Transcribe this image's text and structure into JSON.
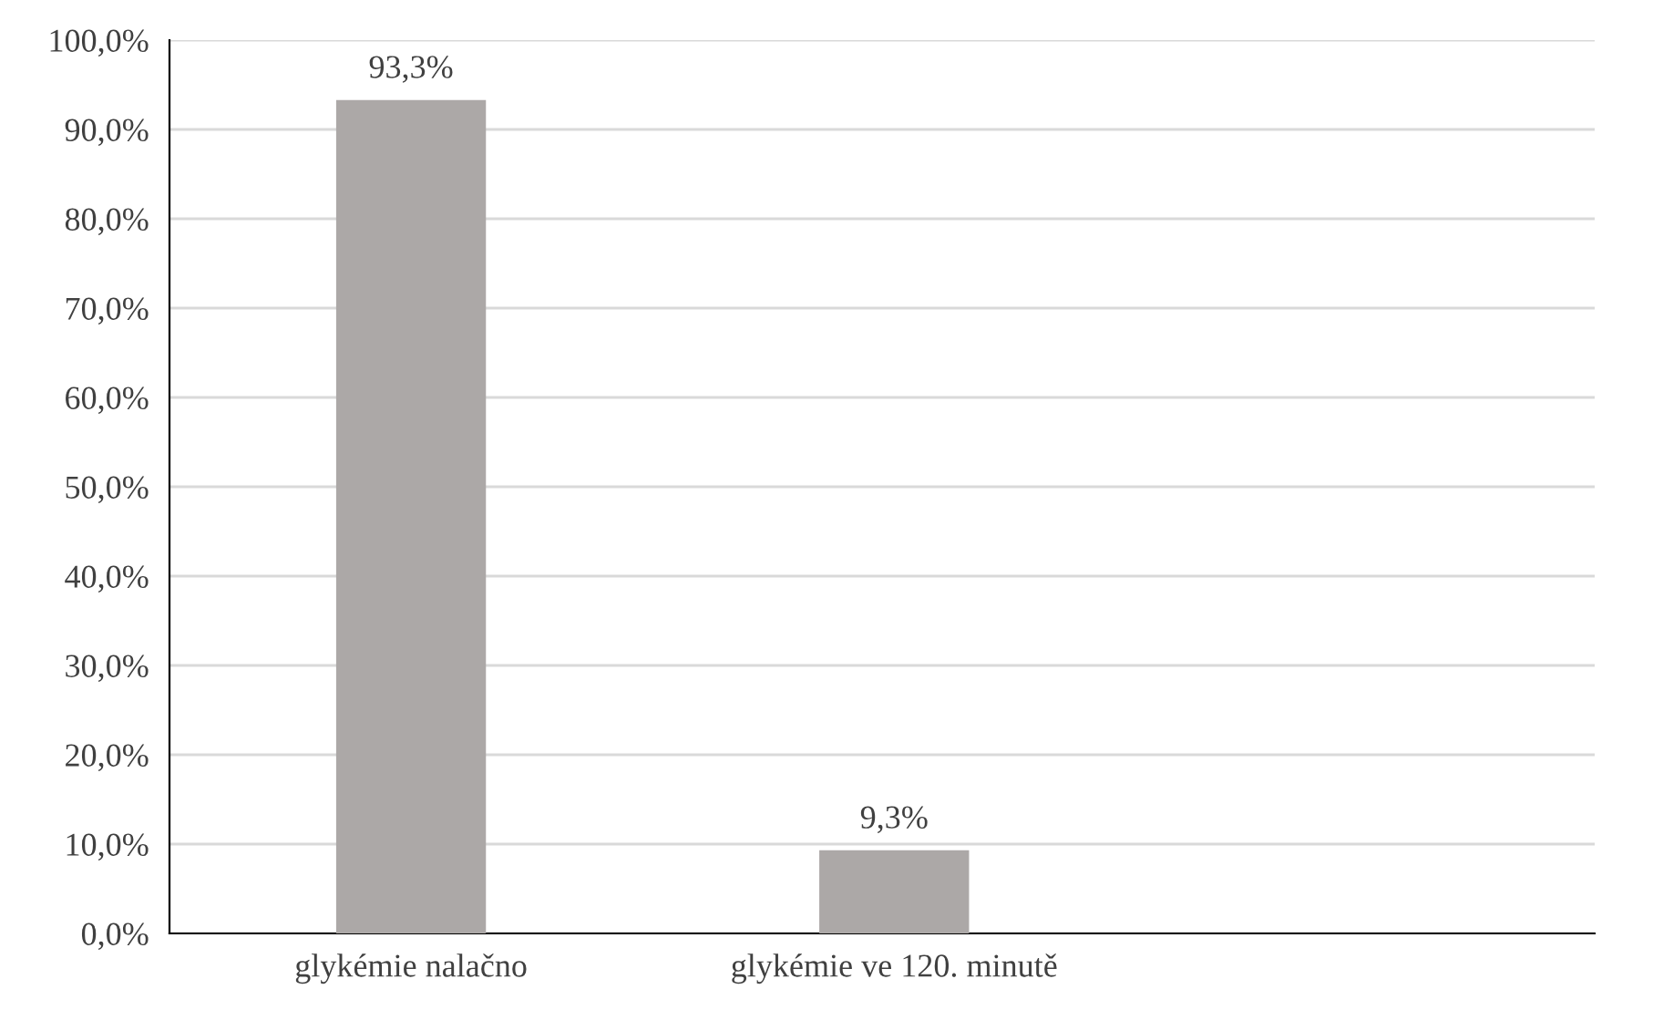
{
  "chart_data": {
    "type": "bar",
    "categories": [
      "glykémie nalačno",
      "glykémie ve 120. minutě",
      null
    ],
    "values": [
      93.3,
      9.3,
      null
    ],
    "value_labels": [
      "93,3%",
      "9,3%",
      null
    ],
    "color": "#aca8a7",
    "ylim": [
      0,
      100
    ],
    "yticks": [
      {
        "value": 0,
        "label": "0,0%"
      },
      {
        "value": 10,
        "label": "10,0%"
      },
      {
        "value": 20,
        "label": "20,0%"
      },
      {
        "value": 30,
        "label": "30,0%"
      },
      {
        "value": 40,
        "label": "40,0%"
      },
      {
        "value": 50,
        "label": "50,0%"
      },
      {
        "value": 60,
        "label": "60,0%"
      },
      {
        "value": 70,
        "label": "70,0%"
      },
      {
        "value": 80,
        "label": "80,0%"
      },
      {
        "value": 90,
        "label": "90,0%"
      },
      {
        "value": 100,
        "label": "100,0%"
      }
    ],
    "grid": "y",
    "legend": false
  }
}
